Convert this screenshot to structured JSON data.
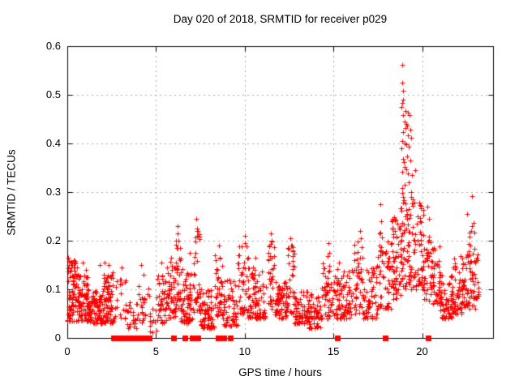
{
  "window": {
    "background": "#ffffff"
  },
  "chart_data": {
    "type": "scatter",
    "title": "Day 020 of 2018, SRMTID for receiver p029",
    "xlabel": "GPS time / hours",
    "ylabel": "SRMTID / TECUs",
    "xlim": [
      0,
      24
    ],
    "ylim": [
      0,
      0.6
    ],
    "xticks": [
      {
        "v": 0,
        "label": "0"
      },
      {
        "v": 5,
        "label": "5"
      },
      {
        "v": 10,
        "label": "10"
      },
      {
        "v": 15,
        "label": "15"
      },
      {
        "v": 20,
        "label": "20"
      }
    ],
    "yticks": [
      {
        "v": 0,
        "label": "0"
      },
      {
        "v": 0.1,
        "label": "0.1"
      },
      {
        "v": 0.2,
        "label": "0.2"
      },
      {
        "v": 0.3,
        "label": "0.3"
      },
      {
        "v": 0.4,
        "label": "0.4"
      },
      {
        "v": 0.5,
        "label": "0.5"
      },
      {
        "v": 0.6,
        "label": "0.6"
      }
    ],
    "grid": {
      "show": true,
      "style": "dashed",
      "color": "#a8a8a8"
    },
    "axis_color": "#000000",
    "marker": {
      "shape": "plus",
      "color": "#ff0000",
      "size": 7
    },
    "flagged_marker": {
      "shape": "filled-square",
      "color": "#ff0000",
      "size": 7
    },
    "legend": "none",
    "seed": 7,
    "series": [
      {
        "name": "SRMTID",
        "points": [
          [
            0.05,
            0.165
          ],
          [
            0.1,
            0.15
          ],
          [
            0.35,
            0.16
          ],
          [
            0.55,
            0.145
          ],
          [
            0.85,
            0.155
          ],
          [
            1.05,
            0.14
          ],
          [
            1.85,
            0.15
          ],
          [
            2.1,
            0.155
          ],
          [
            2.35,
            0.15
          ],
          [
            3.05,
            0.145
          ],
          [
            4.15,
            0.15
          ],
          [
            4.3,
            0.13
          ],
          [
            5.3,
            0.155
          ],
          [
            5.85,
            0.165
          ],
          [
            6.2,
            0.23
          ],
          [
            6.22,
            0.215
          ],
          [
            6.28,
            0.2
          ],
          [
            6.9,
            0.175
          ],
          [
            7.28,
            0.245
          ],
          [
            7.3,
            0.225
          ],
          [
            7.35,
            0.21
          ],
          [
            8.55,
            0.19
          ],
          [
            8.6,
            0.165
          ],
          [
            10.0,
            0.21
          ],
          [
            10.02,
            0.195
          ],
          [
            10.6,
            0.165
          ],
          [
            11.48,
            0.215
          ],
          [
            11.52,
            0.2
          ],
          [
            12.55,
            0.205
          ],
          [
            12.6,
            0.19
          ],
          [
            14.7,
            0.195
          ],
          [
            14.75,
            0.175
          ],
          [
            15.3,
            0.155
          ],
          [
            16.2,
            0.175
          ],
          [
            16.5,
            0.22
          ],
          [
            16.55,
            0.205
          ],
          [
            17.65,
            0.275
          ],
          [
            17.7,
            0.24
          ],
          [
            17.6,
            0.215
          ],
          [
            18.3,
            0.24
          ],
          [
            19.9,
            0.24
          ],
          [
            20.3,
            0.27
          ],
          [
            20.4,
            0.245
          ],
          [
            22.8,
            0.292
          ],
          [
            18.88,
            0.562
          ],
          [
            18.88,
            0.525
          ],
          [
            18.93,
            0.508
          ],
          [
            18.93,
            0.49
          ],
          [
            18.88,
            0.484
          ],
          [
            18.83,
            0.475
          ],
          [
            19.06,
            0.467
          ],
          [
            19.2,
            0.463
          ],
          [
            18.93,
            0.459
          ],
          [
            19.3,
            0.459
          ],
          [
            19.0,
            0.445
          ],
          [
            19.1,
            0.44
          ],
          [
            19.15,
            0.437
          ],
          [
            19.05,
            0.432
          ],
          [
            19.34,
            0.428
          ],
          [
            18.93,
            0.423
          ],
          [
            19.2,
            0.417
          ],
          [
            19.4,
            0.412
          ],
          [
            18.9,
            0.405
          ],
          [
            19.0,
            0.4
          ],
          [
            19.1,
            0.398
          ],
          [
            19.25,
            0.393
          ],
          [
            18.85,
            0.39
          ],
          [
            19.15,
            0.373
          ],
          [
            18.93,
            0.368
          ],
          [
            18.95,
            0.362
          ],
          [
            19.35,
            0.365
          ],
          [
            19.6,
            0.345
          ],
          [
            19.0,
            0.352
          ],
          [
            19.1,
            0.347
          ],
          [
            18.9,
            0.342
          ],
          [
            19.2,
            0.338
          ],
          [
            19.45,
            0.335
          ]
        ],
        "clusters": [
          {
            "x0": 0.0,
            "x1": 0.6,
            "ymin": 0.035,
            "ymax": 0.16,
            "n": 90,
            "skew": 1.6
          },
          {
            "x0": 0.6,
            "x1": 1.2,
            "ymin": 0.035,
            "ymax": 0.13,
            "n": 80,
            "skew": 1.6
          },
          {
            "x0": 1.2,
            "x1": 2.0,
            "ymin": 0.03,
            "ymax": 0.1,
            "n": 90,
            "skew": 1.5
          },
          {
            "x0": 2.0,
            "x1": 2.6,
            "ymin": 0.03,
            "ymax": 0.135,
            "n": 70,
            "skew": 1.6
          },
          {
            "x0": 2.6,
            "x1": 3.4,
            "ymin": 0.04,
            "ymax": 0.125,
            "n": 25,
            "skew": 1.5
          },
          {
            "x0": 3.4,
            "x1": 4.0,
            "ymin": 0.02,
            "ymax": 0.08,
            "n": 25,
            "skew": 1.4
          },
          {
            "x0": 4.0,
            "x1": 4.6,
            "ymin": 0.03,
            "ymax": 0.11,
            "n": 25,
            "skew": 1.5
          },
          {
            "x0": 4.6,
            "x1": 5.1,
            "ymin": 0.012,
            "ymax": 0.06,
            "n": 12,
            "skew": 1.3
          },
          {
            "x0": 5.0,
            "x1": 5.6,
            "ymin": 0.03,
            "ymax": 0.13,
            "n": 45,
            "skew": 1.5
          },
          {
            "x0": 5.6,
            "x1": 6.1,
            "ymin": 0.04,
            "ymax": 0.16,
            "n": 50,
            "skew": 1.6
          },
          {
            "x0": 6.1,
            "x1": 6.4,
            "ymin": 0.06,
            "ymax": 0.21,
            "n": 30,
            "skew": 1.3
          },
          {
            "x0": 6.4,
            "x1": 7.1,
            "ymin": 0.03,
            "ymax": 0.145,
            "n": 70,
            "skew": 1.6
          },
          {
            "x0": 7.1,
            "x1": 7.5,
            "ymin": 0.05,
            "ymax": 0.225,
            "n": 35,
            "skew": 1.4
          },
          {
            "x0": 7.5,
            "x1": 8.3,
            "ymin": 0.02,
            "ymax": 0.1,
            "n": 70,
            "skew": 1.5
          },
          {
            "x0": 8.3,
            "x1": 8.8,
            "ymin": 0.04,
            "ymax": 0.17,
            "n": 45,
            "skew": 1.5
          },
          {
            "x0": 8.8,
            "x1": 9.6,
            "ymin": 0.025,
            "ymax": 0.12,
            "n": 55,
            "skew": 1.5
          },
          {
            "x0": 9.6,
            "x1": 10.2,
            "ymin": 0.05,
            "ymax": 0.19,
            "n": 45,
            "skew": 1.4
          },
          {
            "x0": 10.2,
            "x1": 11.2,
            "ymin": 0.04,
            "ymax": 0.145,
            "n": 85,
            "skew": 1.6
          },
          {
            "x0": 11.3,
            "x1": 11.7,
            "ymin": 0.06,
            "ymax": 0.2,
            "n": 35,
            "skew": 1.3
          },
          {
            "x0": 11.7,
            "x1": 12.4,
            "ymin": 0.04,
            "ymax": 0.12,
            "n": 70,
            "skew": 1.5
          },
          {
            "x0": 12.4,
            "x1": 12.8,
            "ymin": 0.05,
            "ymax": 0.19,
            "n": 30,
            "skew": 1.3
          },
          {
            "x0": 12.8,
            "x1": 13.6,
            "ymin": 0.03,
            "ymax": 0.1,
            "n": 70,
            "skew": 1.5
          },
          {
            "x0": 13.6,
            "x1": 14.3,
            "ymin": 0.02,
            "ymax": 0.09,
            "n": 60,
            "skew": 1.4
          },
          {
            "x0": 14.3,
            "x1": 15.0,
            "ymin": 0.04,
            "ymax": 0.17,
            "n": 50,
            "skew": 1.5
          },
          {
            "x0": 15.0,
            "x1": 16.0,
            "ymin": 0.04,
            "ymax": 0.145,
            "n": 80,
            "skew": 1.6
          },
          {
            "x0": 16.0,
            "x1": 16.7,
            "ymin": 0.05,
            "ymax": 0.2,
            "n": 50,
            "skew": 1.5
          },
          {
            "x0": 16.7,
            "x1": 17.5,
            "ymin": 0.04,
            "ymax": 0.155,
            "n": 60,
            "skew": 1.5
          },
          {
            "x0": 17.5,
            "x1": 18.3,
            "ymin": 0.06,
            "ymax": 0.22,
            "n": 65,
            "skew": 1.5
          },
          {
            "x0": 18.3,
            "x1": 18.8,
            "ymin": 0.08,
            "ymax": 0.25,
            "n": 55,
            "skew": 1.4
          },
          {
            "x0": 18.8,
            "x1": 19.5,
            "ymin": 0.1,
            "ymax": 0.33,
            "n": 80,
            "skew": 1.3
          },
          {
            "x0": 19.5,
            "x1": 20.1,
            "ymin": 0.1,
            "ymax": 0.28,
            "n": 55,
            "skew": 1.4
          },
          {
            "x0": 20.1,
            "x1": 21.0,
            "ymin": 0.07,
            "ymax": 0.22,
            "n": 75,
            "skew": 1.5
          },
          {
            "x0": 21.0,
            "x1": 21.7,
            "ymin": 0.04,
            "ymax": 0.135,
            "n": 65,
            "skew": 1.5
          },
          {
            "x0": 21.7,
            "x1": 22.4,
            "ymin": 0.05,
            "ymax": 0.17,
            "n": 70,
            "skew": 1.5
          },
          {
            "x0": 22.4,
            "x1": 23.0,
            "ymin": 0.06,
            "ymax": 0.26,
            "n": 60,
            "skew": 1.5
          },
          {
            "x0": 23.0,
            "x1": 23.3,
            "ymin": 0.08,
            "ymax": 0.18,
            "n": 15,
            "skew": 1.3
          }
        ]
      },
      {
        "name": "flagged-zero",
        "y": 0,
        "x": [
          2.62,
          2.66,
          2.7,
          2.74,
          2.78,
          2.82,
          2.86,
          2.9,
          2.94,
          2.98,
          3.02,
          3.06,
          3.1,
          3.14,
          3.18,
          3.22,
          3.26,
          3.3,
          3.42,
          3.46,
          3.5,
          3.58,
          3.62,
          3.7,
          3.8,
          3.84,
          3.92,
          4.04,
          4.08,
          4.25,
          4.3,
          4.35,
          4.4,
          4.45,
          4.5,
          4.55,
          4.6,
          6.0,
          6.65,
          7.05,
          7.35,
          8.5,
          8.8,
          9.2,
          15.2,
          17.9,
          20.35
        ]
      }
    ]
  }
}
